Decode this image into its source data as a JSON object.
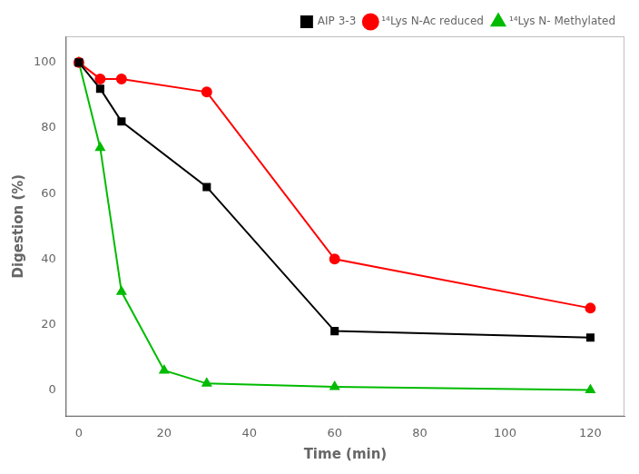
{
  "chart_data": {
    "type": "line",
    "xlabel": "Time (min)",
    "ylabel": "Digestion (%)",
    "xlim": [
      -3,
      128
    ],
    "ylim": [
      -8,
      108
    ],
    "xticks": [
      0,
      20,
      40,
      60,
      80,
      100,
      120
    ],
    "yticks": [
      0,
      20,
      40,
      60,
      80,
      100
    ],
    "grid": false,
    "legend": "upper right",
    "series": [
      {
        "name": "AIP 3-3",
        "color": "#000000",
        "marker": "square",
        "x": [
          0,
          5,
          10,
          30,
          60,
          120
        ],
        "values": [
          100,
          92,
          82,
          62,
          18,
          16
        ]
      },
      {
        "name": "¹⁴Lys N-Ac reduced",
        "color": "#ff0000",
        "marker": "circle",
        "x": [
          0,
          5,
          10,
          30,
          60,
          120
        ],
        "values": [
          100,
          95,
          95,
          91,
          40,
          25
        ]
      },
      {
        "name": "¹⁴Lys N- Methylated",
        "color": "#00bb00",
        "marker": "triangle",
        "x": [
          0,
          5,
          10,
          20,
          30,
          60,
          120
        ],
        "values": [
          100,
          74,
          30,
          6,
          2,
          1,
          0
        ]
      }
    ]
  }
}
